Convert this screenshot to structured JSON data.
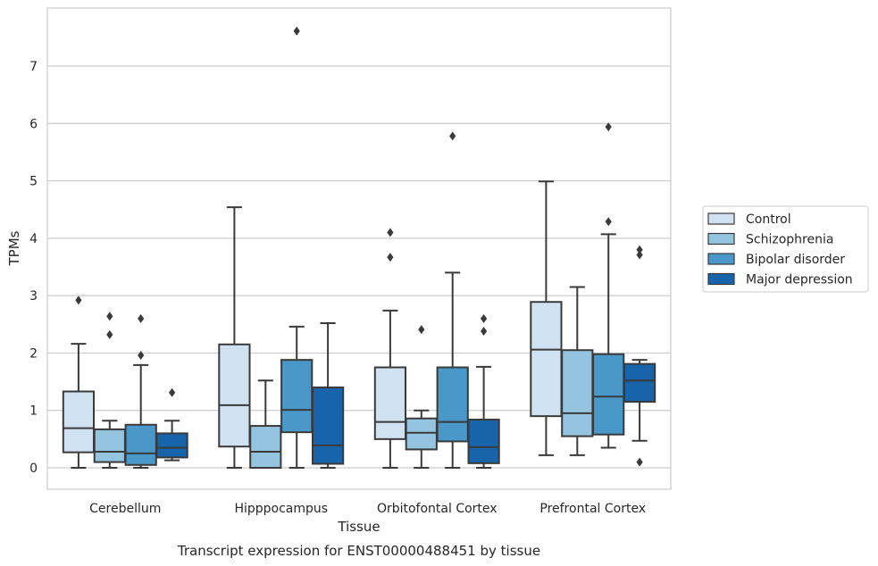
{
  "caption": "Transcript expression for ENST00000488451 by tissue",
  "chart_data": {
    "type": "boxplot",
    "xlabel": "Tissue",
    "ylabel": "TPMs",
    "ylim": [
      -0.38,
      8.0
    ],
    "yticks": [
      0,
      1,
      2,
      3,
      4,
      5,
      6,
      7
    ],
    "grid": "horizontal",
    "legend_position": "right",
    "categories": [
      "Cerebellum",
      "Hipppocampus",
      "Orbitofontal Cortex",
      "Prefrontal Cortex"
    ],
    "series": [
      {
        "name": "Control",
        "color": "#d0e1f2",
        "boxes": [
          {
            "whislo": 0.0,
            "q1": 0.27,
            "med": 0.69,
            "q3": 1.33,
            "whishi": 2.16,
            "fliers": [
              2.92
            ]
          },
          {
            "whislo": 0.0,
            "q1": 0.37,
            "med": 1.09,
            "q3": 2.15,
            "whishi": 4.54,
            "fliers": []
          },
          {
            "whislo": 0.0,
            "q1": 0.5,
            "med": 0.8,
            "q3": 1.75,
            "whishi": 2.74,
            "fliers": [
              3.67,
              4.1
            ]
          },
          {
            "whislo": 0.22,
            "q1": 0.9,
            "med": 2.06,
            "q3": 2.89,
            "whishi": 4.99,
            "fliers": []
          }
        ]
      },
      {
        "name": "Schizophrenia",
        "color": "#94c4df",
        "boxes": [
          {
            "whislo": 0.0,
            "q1": 0.1,
            "med": 0.28,
            "q3": 0.67,
            "whishi": 0.82,
            "fliers": [
              2.32,
              2.64
            ]
          },
          {
            "whislo": 0.0,
            "q1": 0.0,
            "med": 0.28,
            "q3": 0.73,
            "whishi": 1.52,
            "fliers": []
          },
          {
            "whislo": 0.0,
            "q1": 0.32,
            "med": 0.61,
            "q3": 0.86,
            "whishi": 1.0,
            "fliers": [
              2.41
            ]
          },
          {
            "whislo": 0.22,
            "q1": 0.55,
            "med": 0.95,
            "q3": 2.05,
            "whishi": 3.15,
            "fliers": []
          }
        ]
      },
      {
        "name": "Bipolar disorder",
        "color": "#4a98c9",
        "boxes": [
          {
            "whislo": 0.0,
            "q1": 0.05,
            "med": 0.25,
            "q3": 0.75,
            "whishi": 1.79,
            "fliers": [
              1.96,
              2.6
            ]
          },
          {
            "whislo": 0.0,
            "q1": 0.62,
            "med": 1.01,
            "q3": 1.88,
            "whishi": 2.46,
            "fliers": [
              7.61
            ]
          },
          {
            "whislo": 0.0,
            "q1": 0.46,
            "med": 0.8,
            "q3": 1.75,
            "whishi": 3.4,
            "fliers": [
              5.78
            ]
          },
          {
            "whislo": 0.35,
            "q1": 0.58,
            "med": 1.24,
            "q3": 1.98,
            "whishi": 4.07,
            "fliers": [
              4.29,
              5.94
            ]
          }
        ]
      },
      {
        "name": "Major depression",
        "color": "#1764ab",
        "boxes": [
          {
            "whislo": 0.13,
            "q1": 0.18,
            "med": 0.35,
            "q3": 0.6,
            "whishi": 0.82,
            "fliers": [
              1.31
            ]
          },
          {
            "whislo": 0.0,
            "q1": 0.07,
            "med": 0.39,
            "q3": 1.4,
            "whishi": 2.52,
            "fliers": []
          },
          {
            "whislo": 0.0,
            "q1": 0.08,
            "med": 0.36,
            "q3": 0.84,
            "whishi": 1.76,
            "fliers": [
              2.38,
              2.6
            ]
          },
          {
            "whislo": 0.47,
            "q1": 1.15,
            "med": 1.52,
            "q3": 1.81,
            "whishi": 1.88,
            "fliers": [
              0.1,
              3.71,
              3.8
            ]
          }
        ]
      }
    ]
  }
}
